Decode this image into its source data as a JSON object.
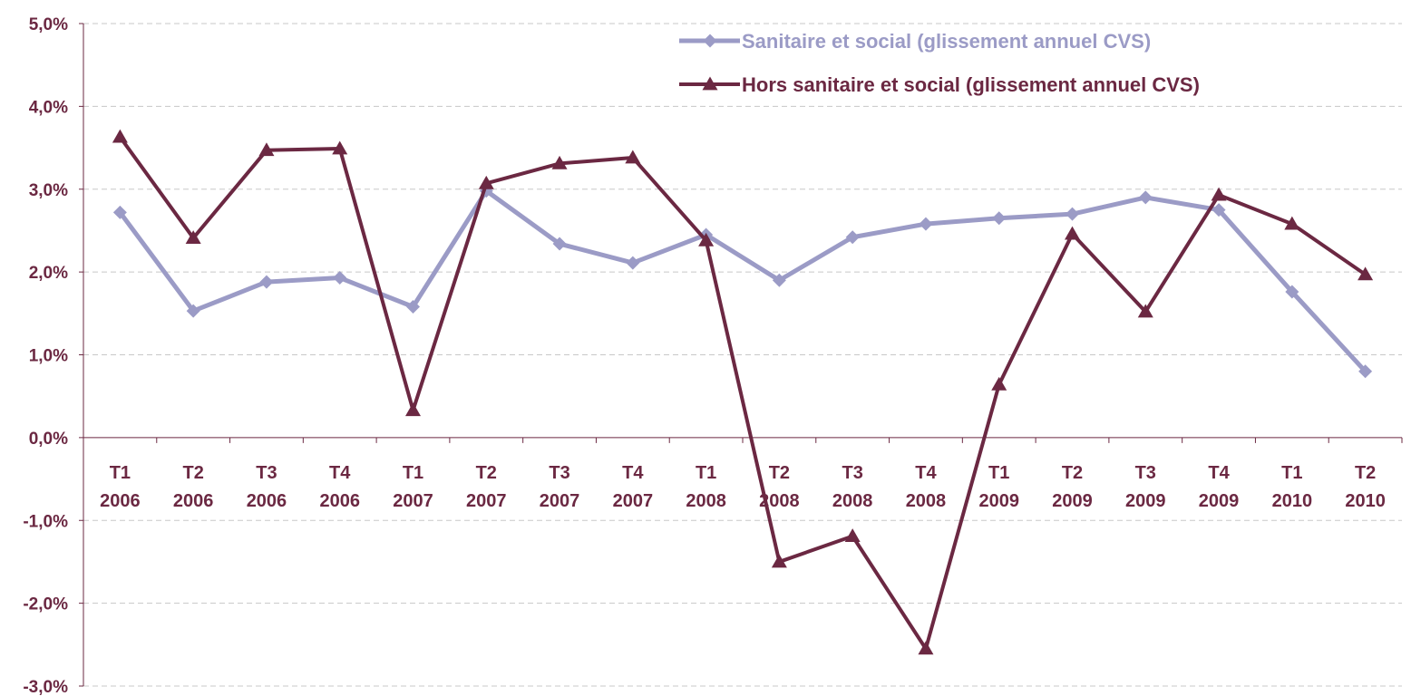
{
  "chart_data": {
    "type": "line",
    "title": "",
    "xlabel": "",
    "ylabel": "",
    "ylim": [
      -3.0,
      5.0
    ],
    "y_ticks": [
      "5,0%",
      "4,0%",
      "3,0%",
      "2,0%",
      "1,0%",
      "0,0%",
      "-1,0%",
      "-2,0%",
      "-3,0%"
    ],
    "categories": [
      [
        "T1",
        "2006"
      ],
      [
        "T2",
        "2006"
      ],
      [
        "T3",
        "2006"
      ],
      [
        "T4",
        "2006"
      ],
      [
        "T1",
        "2007"
      ],
      [
        "T2",
        "2007"
      ],
      [
        "T3",
        "2007"
      ],
      [
        "T4",
        "2007"
      ],
      [
        "T1",
        "2008"
      ],
      [
        "T2",
        "2008"
      ],
      [
        "T3",
        "2008"
      ],
      [
        "T4",
        "2008"
      ],
      [
        "T1",
        "2009"
      ],
      [
        "T2",
        "2009"
      ],
      [
        "T3",
        "2009"
      ],
      [
        "T4",
        "2009"
      ],
      [
        "T1",
        "2010"
      ],
      [
        "T2",
        "2010"
      ]
    ],
    "grid": "horizontal dashed",
    "legend_position": "top-right",
    "series": [
      {
        "name": "Sanitaire et social (glissement annuel CVS)",
        "color": "#9b9bc6",
        "marker": "diamond",
        "values": [
          2.72,
          1.53,
          1.88,
          1.93,
          1.58,
          2.98,
          2.34,
          2.11,
          2.45,
          1.9,
          2.42,
          2.58,
          2.65,
          2.7,
          2.9,
          2.75,
          1.76,
          0.8
        ]
      },
      {
        "name": "Hors sanitaire et social (glissement annuel CVS)",
        "color": "#6b2842",
        "marker": "triangle",
        "values": [
          3.63,
          2.41,
          3.47,
          3.49,
          0.33,
          3.07,
          3.31,
          3.38,
          2.38,
          -1.5,
          -1.19,
          -2.55,
          0.64,
          2.46,
          1.52,
          2.93,
          2.58,
          1.97
        ]
      }
    ]
  }
}
